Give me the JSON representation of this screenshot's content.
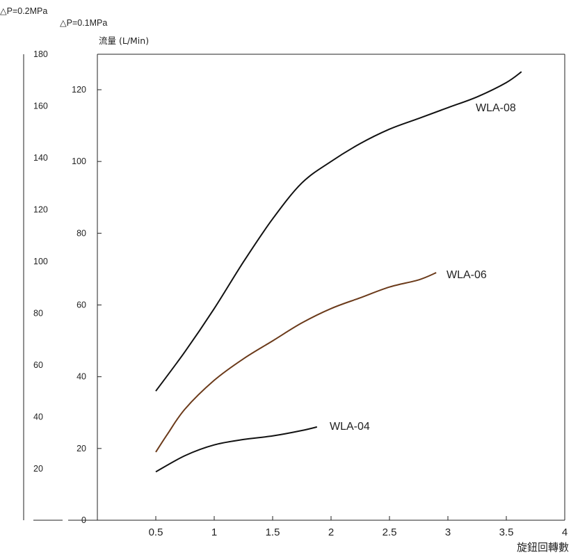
{
  "chart_data": {
    "type": "line",
    "pressure_labels": {
      "outer": "△P=0.2MPa",
      "inner": "△P=0.1MPa"
    },
    "ylabel": "流量 (L/Min)",
    "xlabel": "旋鈕回轉數",
    "xlim": [
      0,
      4
    ],
    "x_ticks": [
      "0.5",
      "1",
      "1.5",
      "2",
      "2.5",
      "3",
      "3.5",
      "4"
    ],
    "ylim_inner": [
      0,
      130
    ],
    "y_ticks_inner": [
      "0",
      "20",
      "40",
      "60",
      "80",
      "100",
      "120"
    ],
    "ylim_outer": [
      0,
      180
    ],
    "y_ticks_outer": [
      "20",
      "40",
      "60",
      "80",
      "100",
      "120",
      "140",
      "160",
      "180"
    ],
    "grid": false,
    "series": [
      {
        "name": "WLA-08",
        "color": "#111111",
        "x": [
          0.5,
          0.75,
          1.0,
          1.25,
          1.5,
          1.75,
          2.0,
          2.25,
          2.5,
          2.75,
          3.0,
          3.25,
          3.5,
          3.63
        ],
        "y": [
          36,
          47,
          59,
          72,
          84,
          94,
          100,
          105,
          109,
          112,
          115,
          118,
          122,
          125
        ]
      },
      {
        "name": "WLA-06",
        "color": "#6b3a1a",
        "x": [
          0.5,
          0.6,
          0.75,
          1.0,
          1.25,
          1.5,
          1.75,
          2.0,
          2.25,
          2.5,
          2.75,
          2.9
        ],
        "y": [
          19,
          24,
          31,
          39,
          45,
          50,
          55,
          59,
          62,
          65,
          67,
          69
        ]
      },
      {
        "name": "WLA-04",
        "color": "#111111",
        "x": [
          0.5,
          0.75,
          1.0,
          1.25,
          1.5,
          1.75,
          1.88
        ],
        "y": [
          13.5,
          18,
          21,
          22.5,
          23.5,
          25,
          26
        ]
      }
    ]
  }
}
